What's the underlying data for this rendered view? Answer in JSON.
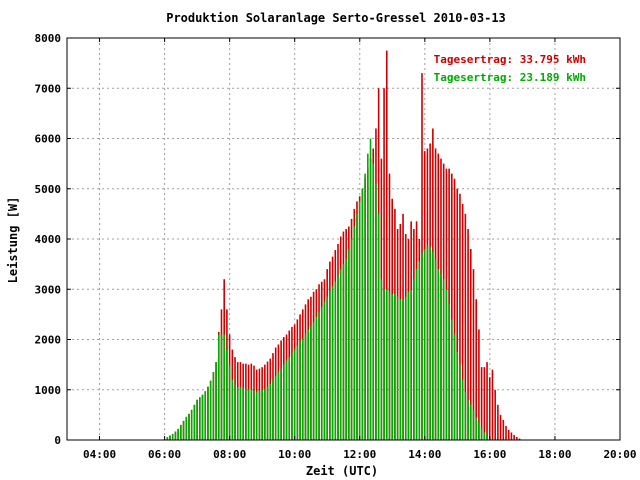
{
  "chart_data": {
    "type": "bar",
    "title": "Produktion Solaranlage Serto-Gressel 2010-03-13",
    "xlabel": "Zeit (UTC)",
    "ylabel": "Leistung [W]",
    "x_unit": "hour",
    "xlim": [
      3.0,
      20.0
    ],
    "ylim": [
      0,
      8000
    ],
    "x_ticks": [
      4,
      6,
      8,
      10,
      12,
      14,
      16,
      18,
      20
    ],
    "x_tick_labels": [
      "04:00",
      "06:00",
      "08:00",
      "10:00",
      "12:00",
      "14:00",
      "16:00",
      "18:00",
      "20:00"
    ],
    "y_ticks": [
      0,
      1000,
      2000,
      3000,
      4000,
      5000,
      6000,
      7000,
      8000
    ],
    "y_tick_labels": [
      "0",
      "1000",
      "2000",
      "3000",
      "4000",
      "5000",
      "6000",
      "7000",
      "8000"
    ],
    "grid": true,
    "legend_position": "top-right",
    "x_start": 6.0,
    "x_step": 0.0833,
    "series": [
      {
        "name": "Tagesertrag: 33.795 kWh",
        "color": "#cc0000",
        "values": [
          20,
          60,
          90,
          120,
          170,
          220,
          300,
          380,
          460,
          520,
          600,
          700,
          800,
          850,
          900,
          970,
          1060,
          1180,
          1350,
          1550,
          2150,
          2600,
          3200,
          2600,
          2100,
          1800,
          1650,
          1550,
          1550,
          1520,
          1520,
          1500,
          1520,
          1480,
          1400,
          1420,
          1450,
          1500,
          1560,
          1620,
          1730,
          1840,
          1900,
          1980,
          2050,
          2100,
          2180,
          2250,
          2300,
          2400,
          2500,
          2600,
          2700,
          2800,
          2850,
          2950,
          3000,
          3100,
          3150,
          3200,
          3400,
          3550,
          3650,
          3780,
          3900,
          4050,
          4150,
          4200,
          4250,
          4400,
          4600,
          4750,
          4850,
          5000,
          5200,
          5400,
          5600,
          5800,
          6200,
          7000,
          5600,
          7000,
          7750,
          5300,
          4800,
          4600,
          4200,
          4300,
          4500,
          4100,
          4000,
          4350,
          4200,
          4350,
          4000,
          7300,
          5750,
          5800,
          5900,
          6200,
          5800,
          5700,
          5600,
          5500,
          5400,
          5400,
          5300,
          5200,
          5000,
          4900,
          4700,
          4500,
          4200,
          3800,
          3400,
          2800,
          2200,
          1450,
          1450,
          1550,
          1250,
          1400,
          1000,
          700,
          500,
          400,
          280,
          200,
          150,
          100,
          60,
          30
        ]
      },
      {
        "name": "Tagesertrag: 23.189 kWh",
        "color": "#00aa00",
        "values": [
          20,
          60,
          90,
          120,
          170,
          220,
          300,
          380,
          460,
          520,
          600,
          700,
          800,
          850,
          900,
          970,
          1060,
          1180,
          1350,
          1550,
          2100,
          2100,
          2100,
          1800,
          1500,
          1200,
          1100,
          1050,
          1050,
          1030,
          1020,
          1000,
          1000,
          980,
          960,
          980,
          1000,
          1020,
          1060,
          1120,
          1200,
          1280,
          1350,
          1420,
          1500,
          1580,
          1650,
          1730,
          1800,
          1880,
          1950,
          2020,
          2100,
          2200,
          2280,
          2350,
          2450,
          2550,
          2650,
          2750,
          2850,
          2950,
          3050,
          3150,
          3280,
          3400,
          3500,
          3600,
          3800,
          4000,
          4250,
          4500,
          4750,
          5000,
          5300,
          5700,
          6000,
          5500,
          5100,
          4500,
          3200,
          3000,
          3000,
          2950,
          2900,
          2900,
          2850,
          2800,
          2800,
          2850,
          2950,
          3000,
          3200,
          3400,
          3550,
          3700,
          3800,
          3850,
          3850,
          3750,
          3600,
          3400,
          3300,
          3200,
          3000,
          2700,
          2400,
          2100,
          1750,
          1500,
          1200,
          950,
          800,
          700,
          600,
          450,
          350,
          250,
          150,
          80,
          30
        ]
      }
    ]
  }
}
